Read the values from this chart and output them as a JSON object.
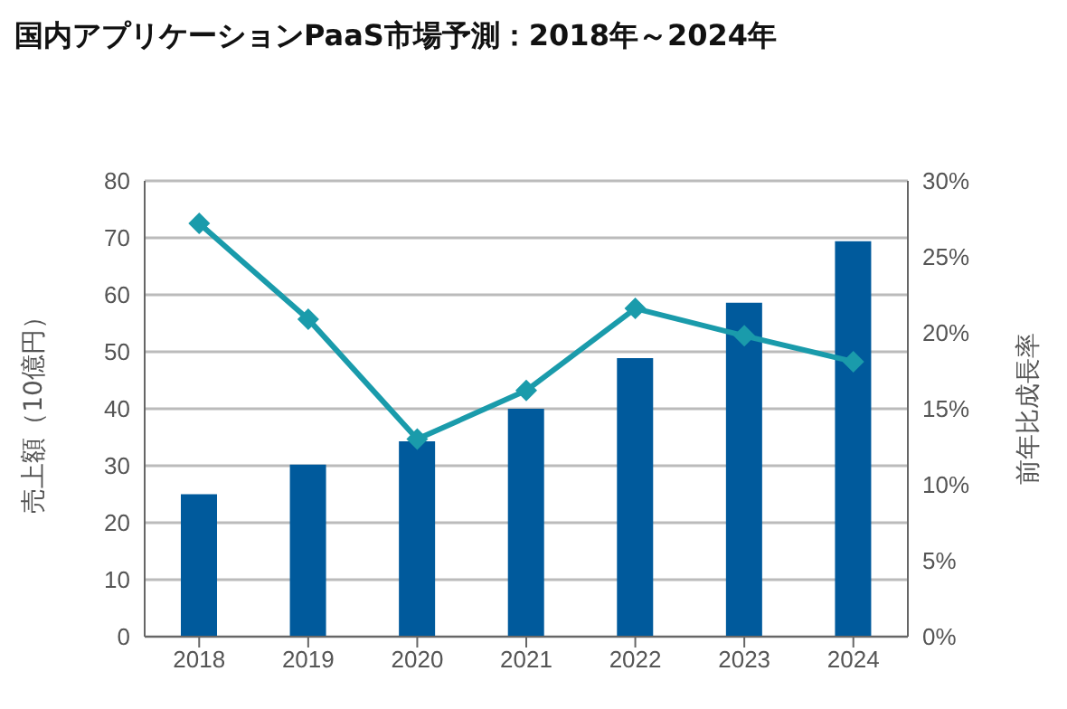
{
  "chart_data": {
    "type": "bar",
    "title": "国内アプリケーションPaaS市場予測：2018年～2024年",
    "ylabel": "売上額（10億円）",
    "y2label": "前年比成長率",
    "categories": [
      "2018",
      "2019",
      "2020",
      "2021",
      "2022",
      "2023",
      "2024"
    ],
    "series": [
      {
        "color": "#005a9c",
        "values": [
          25,
          30.2,
          34.3,
          40,
          48.9,
          58.6,
          69.4
        ]
      },
      {
        "type": "line",
        "axis": "y2",
        "color": "#1a9bab",
        "marker": "diamond",
        "values": [
          27.2,
          20.9,
          13,
          16.2,
          21.6,
          19.8,
          18.1
        ]
      }
    ],
    "ylim": [
      0,
      80
    ],
    "yticks": [
      0,
      10,
      20,
      30,
      40,
      50,
      60,
      70,
      80
    ],
    "y2lim": [
      0,
      30
    ],
    "y2ticks": [
      {
        "value": 0,
        "label": "0%"
      },
      {
        "value": 5,
        "label": "5%"
      },
      {
        "value": 10,
        "label": "10%"
      },
      {
        "value": 15,
        "label": "15%"
      },
      {
        "value": 20,
        "label": "20%"
      },
      {
        "value": 25,
        "label": "25%"
      },
      {
        "value": 30,
        "label": "30%"
      }
    ],
    "grid": "y",
    "legend": false
  }
}
